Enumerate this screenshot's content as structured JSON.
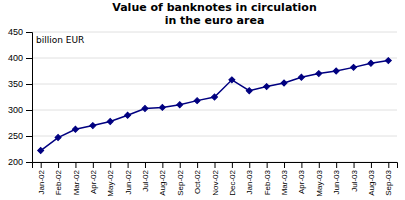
{
  "chart_data": {
    "type": "line",
    "title": "Value of banknotes in circulation\nin the euro area",
    "ylabel": "billion EUR",
    "categories": [
      "Jan-02",
      "Feb-02",
      "Mar-02",
      "Apr-02",
      "May-02",
      "Jun-02",
      "Jul-02",
      "Aug-02",
      "Sep-02",
      "Oct-02",
      "Nov-02",
      "Dec-02",
      "Jan-03",
      "Feb-03",
      "Mar-03",
      "Apr-03",
      "May-03",
      "Jun-03",
      "Jul-03",
      "Aug-03",
      "Sep-03"
    ],
    "values": [
      222,
      247,
      263,
      270,
      278,
      290,
      303,
      305,
      310,
      318,
      325,
      358,
      337,
      345,
      352,
      363,
      370,
      375,
      382,
      390,
      395
    ],
    "color": "#000080",
    "marker": "diamond",
    "ylim": [
      200,
      450
    ],
    "yticks": [
      200,
      250,
      300,
      350,
      400,
      450
    ],
    "grid": true
  }
}
